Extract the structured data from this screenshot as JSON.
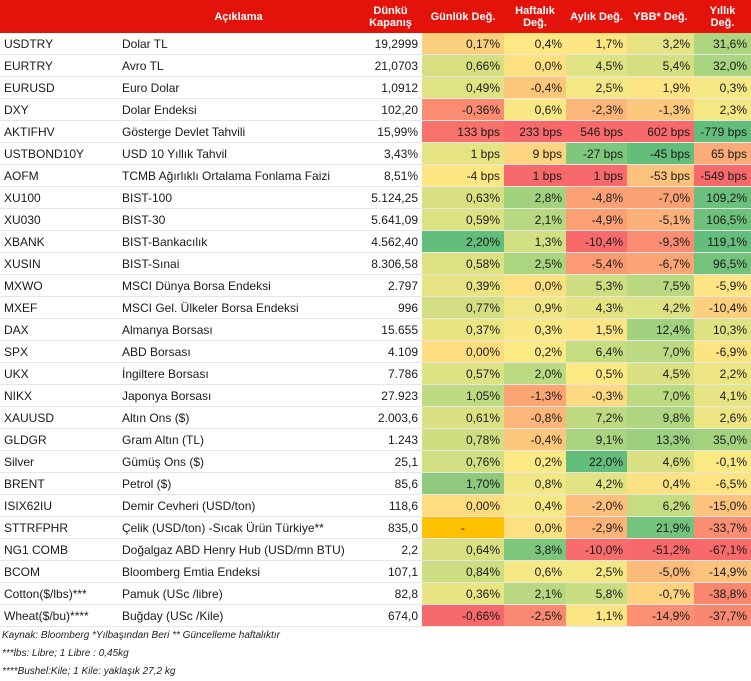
{
  "headers": {
    "code": "",
    "description": "Açıklama",
    "close": "Dünkü Kapanış",
    "daily": "Günlük Değ.",
    "weekly": "Haftalık Değ.",
    "monthly": "Aylık Değ.",
    "ytd": "YBB* Değ.",
    "yearly": "Yıllık Değ."
  },
  "rows": [
    {
      "code": "USDTRY",
      "desc": "Dolar TL",
      "close": "19,2999",
      "daily": "0,17%",
      "weekly": "0,4%",
      "monthly": "1,7%",
      "ytd": "3,2%",
      "yearly": "31,6%",
      "colors": [
        "#fbd07d",
        "#fde884",
        "#fee683",
        "#e5e383",
        "#aed680"
      ]
    },
    {
      "code": "EURTRY",
      "desc": "Avro TL",
      "close": "21,0703",
      "daily": "0,66%",
      "weekly": "0,0%",
      "monthly": "4,5%",
      "ytd": "5,4%",
      "yearly": "32,0%",
      "colors": [
        "#d7df81",
        "#fde180",
        "#e0e382",
        "#d4df81",
        "#aad580"
      ]
    },
    {
      "code": "EURUSD",
      "desc": "Euro Dolar",
      "close": "1,0912",
      "daily": "0,49%",
      "weekly": "-0,4%",
      "monthly": "2,5%",
      "ytd": "1,9%",
      "yearly": "0,3%",
      "colors": [
        "#e0e382",
        "#fdc77b",
        "#f4e884",
        "#fde583",
        "#f6e884"
      ]
    },
    {
      "code": "DXY",
      "desc": "Dolar Endeksi",
      "close": "102,20",
      "daily": "-0,36%",
      "weekly": "0,6%",
      "monthly": "-2,3%",
      "ytd": "-1,3%",
      "yearly": "2,3%",
      "colors": [
        "#f98c71",
        "#f9e883",
        "#fcb679",
        "#fcc87c",
        "#f3e884"
      ]
    },
    {
      "code": "AKTIFHV",
      "desc": "Gösterge Devlet Tahvili",
      "close": "15,99%",
      "daily": "133 bps",
      "weekly": "233 bps",
      "monthly": "546 bps",
      "ytd": "602 bps",
      "yearly": "-779 bps",
      "colors": [
        "#f8716b",
        "#f8696b",
        "#f8696b",
        "#f8696b",
        "#63be7b"
      ]
    },
    {
      "code": "USTBOND10Y",
      "desc": "USD 10 Yıllık Tahvil",
      "close": "3,43%",
      "daily": "1 bps",
      "weekly": "9 bps",
      "monthly": "-27 bps",
      "ytd": "-45 bps",
      "yearly": "65 bps",
      "colors": [
        "#e6e383",
        "#fdd47f",
        "#7fc77c",
        "#63be7b",
        "#fbab77"
      ]
    },
    {
      "code": "AOFM",
      "desc": "TCMB Ağırlıklı Ortalama Fonlama Faizi",
      "close": "8,51%",
      "daily": "-4 bps",
      "weekly": "1 bps",
      "monthly": "1 bps",
      "ytd": "-53 bps",
      "yearly": "-549 bps",
      "colors": [
        "#fee783",
        "#f8696b",
        "#f8696b",
        "#fcc27c",
        "#f8696b"
      ]
    },
    {
      "code": "XU100",
      "desc": "BIST-100",
      "close": "5.124,25",
      "daily": "0,63%",
      "weekly": "2,8%",
      "monthly": "-4,8%",
      "ytd": "-7,0%",
      "yearly": "109,2%",
      "colors": [
        "#d9e082",
        "#a3d27f",
        "#fca075",
        "#fba275",
        "#6ac07c"
      ]
    },
    {
      "code": "XU030",
      "desc": "BIST-30",
      "close": "5.641,09",
      "daily": "0,59%",
      "weekly": "2,1%",
      "monthly": "-4,9%",
      "ytd": "-5,1%",
      "yearly": "106,5%",
      "colors": [
        "#dce182",
        "#b8d981",
        "#fc9f75",
        "#fbb179",
        "#6dc17c"
      ]
    },
    {
      "code": "XBANK",
      "desc": "BIST-Bankacılık",
      "close": "4.562,40",
      "daily": "2,20%",
      "weekly": "1,3%",
      "monthly": "-10,4%",
      "ytd": "-9,3%",
      "yearly": "119,1%",
      "colors": [
        "#63be7b",
        "#d2df82",
        "#f8696b",
        "#f98c71",
        "#63be7b"
      ]
    },
    {
      "code": "XUSIN",
      "desc": "BIST-Sınai",
      "close": "8.306,58",
      "daily": "0,58%",
      "weekly": "2,5%",
      "monthly": "-5,4%",
      "ytd": "-6,7%",
      "yearly": "96,5%",
      "colors": [
        "#dde182",
        "#acd580",
        "#fc9a74",
        "#fba476",
        "#74c37c"
      ]
    },
    {
      "code": "MXWO",
      "desc": "MSCI Dünya Borsa Endeksi",
      "close": "2.797",
      "daily": "0,39%",
      "weekly": "0,0%",
      "monthly": "5,3%",
      "ytd": "7,5%",
      "yearly": "-5,9%",
      "colors": [
        "#e8e483",
        "#fde180",
        "#cfde81",
        "#b9d981",
        "#fde583"
      ]
    },
    {
      "code": "MXEF",
      "desc": "MSCI Gel. Ülkeler Borsa Endeksi",
      "close": "996",
      "daily": "0,77%",
      "weekly": "0,9%",
      "monthly": "4,3%",
      "ytd": "4,2%",
      "yearly": "-10,4%",
      "colors": [
        "#d2de81",
        "#f0e784",
        "#e3e382",
        "#dde282",
        "#fed07e"
      ]
    },
    {
      "code": "DAX",
      "desc": "Almanya Borsası",
      "close": "15.655",
      "daily": "0,37%",
      "weekly": "0,3%",
      "monthly": "1,5%",
      "ytd": "12,4%",
      "yearly": "10,3%",
      "colors": [
        "#e9e583",
        "#fae884",
        "#fde583",
        "#a1d27f",
        "#dde282"
      ]
    },
    {
      "code": "SPX",
      "desc": "ABD Borsası",
      "close": "4.109",
      "daily": "0,00%",
      "weekly": "0,2%",
      "monthly": "6,4%",
      "ytd": "7,0%",
      "yearly": "-6,9%",
      "colors": [
        "#fedd81",
        "#fbe984",
        "#c5dc81",
        "#bcda81",
        "#fde483"
      ]
    },
    {
      "code": "UKX",
      "desc": "İngiltere Borsası",
      "close": "7.786",
      "daily": "0,57%",
      "weekly": "2,0%",
      "monthly": "0,5%",
      "ytd": "4,5%",
      "yearly": "2,2%",
      "colors": [
        "#dde282",
        "#bcda81",
        "#feea84",
        "#dbe082",
        "#eee684"
      ]
    },
    {
      "code": "NIKX",
      "desc": "Japonya Borsası",
      "close": "27.923",
      "daily": "1,05%",
      "weekly": "-1,3%",
      "monthly": "-0,3%",
      "ytd": "7,0%",
      "yearly": "4,1%",
      "colors": [
        "#bfdb81",
        "#fba575",
        "#fdda81",
        "#bcda81",
        "#e6e483"
      ]
    },
    {
      "code": "XAUUSD",
      "desc": "Altın Ons ($)",
      "close": "2.003,6",
      "daily": "0,61%",
      "weekly": "-0,8%",
      "monthly": "7,2%",
      "ytd": "9,8%",
      "yearly": "2,6%",
      "colors": [
        "#dbe082",
        "#fcb679",
        "#bdda81",
        "#afd680",
        "#eee684"
      ]
    },
    {
      "code": "GLDGR",
      "desc": "Gram Altın (TL)",
      "close": "1.243",
      "daily": "0,78%",
      "weekly": "-0,4%",
      "monthly": "9,1%",
      "ytd": "13,3%",
      "yearly": "35,0%",
      "colors": [
        "#d0de81",
        "#fdc77b",
        "#a9d47f",
        "#9ad07e",
        "#a4d37f"
      ]
    },
    {
      "code": "Silver",
      "desc": "Gümüş Ons ($)",
      "close": "25,1",
      "daily": "0,76%",
      "weekly": "0,2%",
      "monthly": "22,0%",
      "ytd": "4,6%",
      "yearly": "-0,1%",
      "colors": [
        "#d1de81",
        "#fbe984",
        "#63be7b",
        "#dae182",
        "#fbe984"
      ]
    },
    {
      "code": "BRENT",
      "desc": "Petrol ($)",
      "close": "85,6",
      "daily": "1,70%",
      "weekly": "0,8%",
      "monthly": "4,2%",
      "ytd": "0,4%",
      "yearly": "-6,5%",
      "colors": [
        "#8ec97d",
        "#f1e784",
        "#e2e382",
        "#fce282",
        "#fde483"
      ]
    },
    {
      "code": "ISIX62IU",
      "desc": "Demir Cevheri (USD/ton)",
      "close": "118,6",
      "daily": "0,00%",
      "weekly": "0,4%",
      "monthly": "-2,0%",
      "ytd": "6,2%",
      "yearly": "-15,0%",
      "colors": [
        "#fedd81",
        "#f6e884",
        "#fdc07c",
        "#c6dc81",
        "#fdc27c"
      ]
    },
    {
      "code": "STTRFPHR",
      "desc": "Çelik (USD/ton) -Sıcak Ürün Türkiye**",
      "close": "835,0",
      "daily": "-",
      "weekly": "0,0%",
      "monthly": "-2,9%",
      "ytd": "21,9%",
      "yearly": "-33,7%",
      "colors": [
        "#ffc000",
        "#fde180",
        "#fcb378",
        "#73c37c",
        "#fa8d72"
      ]
    },
    {
      "code": "NG1 COMB",
      "desc": "Doğalgaz ABD Henry Hub (USD/mn BTU)",
      "close": "2,2",
      "daily": "0,64%",
      "weekly": "3,8%",
      "monthly": "-10,0%",
      "ytd": "-51,2%",
      "yearly": "-67,1%",
      "colors": [
        "#d8e082",
        "#7dc77c",
        "#f86d6c",
        "#f8696b",
        "#f8696b"
      ]
    },
    {
      "code": "BCOM",
      "desc": "Bloomberg Emtia Endeksi",
      "close": "107,1",
      "daily": "0,84%",
      "weekly": "0,6%",
      "monthly": "2,5%",
      "ytd": "-5,0%",
      "yearly": "-14,9%",
      "colors": [
        "#cddd81",
        "#f6e884",
        "#f3e884",
        "#fbbb7a",
        "#fdc27c"
      ]
    },
    {
      "code": "Cotton($/lbs)***",
      "desc": "Pamuk (USc /libre)",
      "close": "82,8",
      "daily": "0,36%",
      "weekly": "2,1%",
      "monthly": "5,8%",
      "ytd": "-0,7%",
      "yearly": "-38,8%",
      "colors": [
        "#e9e583",
        "#b8d981",
        "#cadd81",
        "#fdd380",
        "#f98770"
      ]
    },
    {
      "code": "Wheat($/bu)****",
      "desc": "Buğday (USc /Kile)",
      "close": "674,0",
      "daily": "-0,66%",
      "weekly": "-2,5%",
      "monthly": "1,1%",
      "ytd": "-14,9%",
      "yearly": "-37,7%",
      "colors": [
        "#f8696b",
        "#f98a71",
        "#fee583",
        "#fa8f72",
        "#f98871"
      ]
    }
  ],
  "footer": [
    "Kaynak: Bloomberg *Yılbaşından Beri  ** Güncelleme haftalıktır",
    "***lbs: Libre; 1 Libre : 0,45kg",
    "****Bushel:Kile; 1 Kile: yaklaşık 27,2 kg"
  ]
}
